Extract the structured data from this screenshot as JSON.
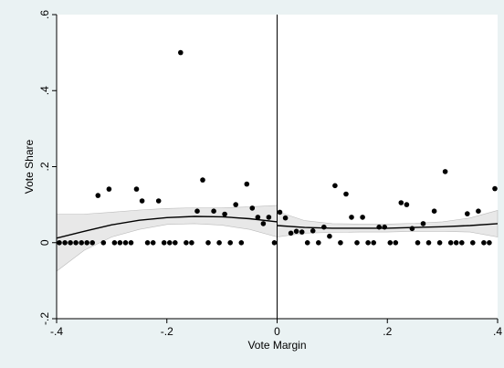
{
  "chart_data": {
    "type": "scatter",
    "xlabel": "Vote Margin",
    "ylabel": "Vote Share",
    "xlim": [
      -0.4,
      0.4
    ],
    "ylim": [
      -0.2,
      0.6
    ],
    "xticks": [
      -0.4,
      -0.2,
      0,
      0.2,
      0.4
    ],
    "xtick_labels": [
      "-.4",
      "-.2",
      "0",
      ".2",
      ".4"
    ],
    "yticks": [
      -0.2,
      0,
      0.2,
      0.4,
      0.6
    ],
    "ytick_labels": [
      "-.2",
      "0",
      ".2",
      ".4",
      ".6"
    ],
    "cutoff": 0,
    "grid": false,
    "colors": {
      "background": "#eaf2f3",
      "plot_area": "#ffffff",
      "points": "#000000",
      "fit_line": "#000000",
      "confidence_band": "#cccccc"
    },
    "points": [
      [
        -0.395,
        0
      ],
      [
        -0.385,
        0
      ],
      [
        -0.375,
        0
      ],
      [
        -0.365,
        0
      ],
      [
        -0.355,
        0
      ],
      [
        -0.345,
        0
      ],
      [
        -0.335,
        0
      ],
      [
        -0.325,
        0.124
      ],
      [
        -0.315,
        0
      ],
      [
        -0.305,
        0.141
      ],
      [
        -0.295,
        0
      ],
      [
        -0.285,
        0
      ],
      [
        -0.275,
        0
      ],
      [
        -0.265,
        0
      ],
      [
        -0.255,
        0.141
      ],
      [
        -0.245,
        0.11
      ],
      [
        -0.235,
        0
      ],
      [
        -0.225,
        0
      ],
      [
        -0.215,
        0.11
      ],
      [
        -0.205,
        0
      ],
      [
        -0.195,
        0
      ],
      [
        -0.185,
        0
      ],
      [
        -0.175,
        0.5
      ],
      [
        -0.165,
        0
      ],
      [
        -0.155,
        0
      ],
      [
        -0.145,
        0.083
      ],
      [
        -0.135,
        0.165
      ],
      [
        -0.125,
        0
      ],
      [
        -0.115,
        0.083
      ],
      [
        -0.105,
        0
      ],
      [
        -0.095,
        0.075
      ],
      [
        -0.085,
        0
      ],
      [
        -0.075,
        0.1
      ],
      [
        -0.065,
        0
      ],
      [
        -0.055,
        0.154
      ],
      [
        -0.045,
        0.091
      ],
      [
        -0.035,
        0.067
      ],
      [
        -0.025,
        0.05
      ],
      [
        -0.015,
        0.067
      ],
      [
        -0.005,
        0
      ],
      [
        0.005,
        0.08
      ],
      [
        0.015,
        0.065
      ],
      [
        0.025,
        0.025
      ],
      [
        0.035,
        0.03
      ],
      [
        0.045,
        0.028
      ],
      [
        0.055,
        0
      ],
      [
        0.065,
        0.031
      ],
      [
        0.075,
        0
      ],
      [
        0.085,
        0.041
      ],
      [
        0.095,
        0.017
      ],
      [
        0.105,
        0.15
      ],
      [
        0.115,
        0
      ],
      [
        0.125,
        0.128
      ],
      [
        0.135,
        0.067
      ],
      [
        0.145,
        0
      ],
      [
        0.155,
        0.067
      ],
      [
        0.165,
        0
      ],
      [
        0.175,
        0
      ],
      [
        0.185,
        0.041
      ],
      [
        0.195,
        0.041
      ],
      [
        0.205,
        0
      ],
      [
        0.215,
        0
      ],
      [
        0.225,
        0.105
      ],
      [
        0.235,
        0.1
      ],
      [
        0.245,
        0.037
      ],
      [
        0.255,
        0
      ],
      [
        0.265,
        0.05
      ],
      [
        0.275,
        0
      ],
      [
        0.285,
        0.083
      ],
      [
        0.295,
        0
      ],
      [
        0.305,
        0.187
      ],
      [
        0.315,
        0
      ],
      [
        0.325,
        0
      ],
      [
        0.335,
        0
      ],
      [
        0.345,
        0.076
      ],
      [
        0.355,
        0
      ],
      [
        0.365,
        0.083
      ],
      [
        0.375,
        0
      ],
      [
        0.385,
        0
      ],
      [
        0.395,
        0.142
      ]
    ],
    "fit_left": {
      "x": [
        -0.4,
        -0.35,
        -0.3,
        -0.25,
        -0.2,
        -0.15,
        -0.1,
        -0.05,
        0
      ],
      "y": [
        0.012,
        0.03,
        0.047,
        0.059,
        0.066,
        0.069,
        0.068,
        0.063,
        0.055
      ],
      "lower": [
        -0.075,
        -0.02,
        0.015,
        0.035,
        0.048,
        0.05,
        0.046,
        0.035,
        0.015
      ],
      "upper": [
        0.075,
        0.075,
        0.08,
        0.086,
        0.09,
        0.092,
        0.092,
        0.094,
        0.098
      ]
    },
    "fit_right": {
      "x": [
        0,
        0.05,
        0.1,
        0.15,
        0.2,
        0.25,
        0.3,
        0.35,
        0.4
      ],
      "y": [
        0.045,
        0.04,
        0.038,
        0.038,
        0.038,
        0.04,
        0.042,
        0.045,
        0.05
      ],
      "lower": [
        0.015,
        0.025,
        0.027,
        0.028,
        0.028,
        0.03,
        0.03,
        0.028,
        0.015
      ],
      "upper": [
        0.082,
        0.058,
        0.05,
        0.049,
        0.049,
        0.051,
        0.055,
        0.065,
        0.085
      ]
    }
  }
}
